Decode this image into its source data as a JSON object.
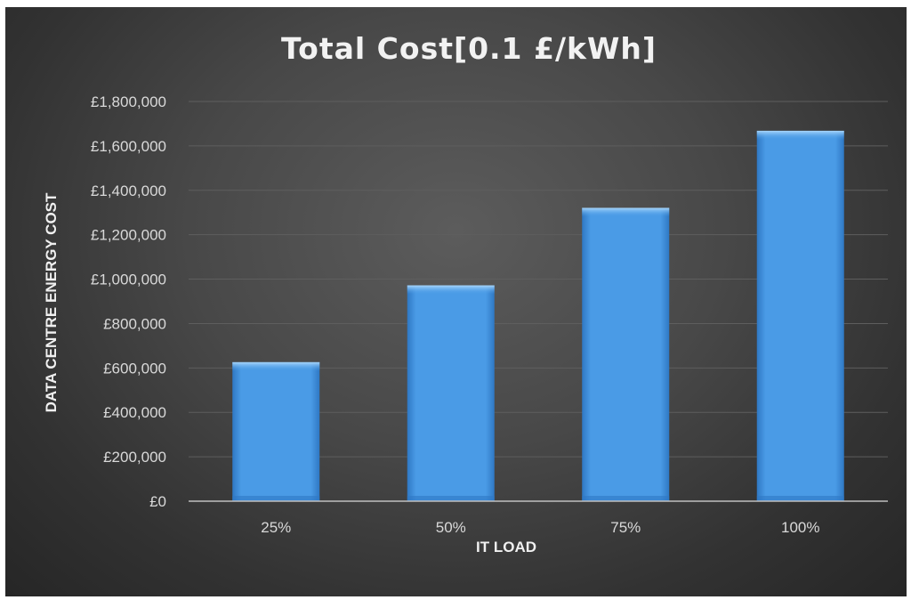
{
  "chart_data": {
    "type": "bar",
    "title": "Total Cost[0.1 £/kWh]",
    "xlabel": "IT LOAD",
    "ylabel": "DATA CENTRE ENERGY COST",
    "categories": [
      "25%",
      "50%",
      "75%",
      "100%"
    ],
    "values": [
      626000,
      972000,
      1321000,
      1668000
    ],
    "ylim": [
      0,
      1800000
    ],
    "yticks": [
      0,
      200000,
      400000,
      600000,
      800000,
      1000000,
      1200000,
      1400000,
      1600000,
      1800000
    ],
    "ytick_labels": [
      "£0",
      "£200,000",
      "£400,000",
      "£600,000",
      "£800,000",
      "£1,000,000",
      "£1,200,000",
      "£1,400,000",
      "£1,600,000",
      "£1,800,000"
    ],
    "grid": true,
    "legend": "none",
    "colors": {
      "bar": "#4a9be6",
      "bar_top": "#8cc6f7",
      "bar_dark": "#2f78c4",
      "background": "#3f3f3f",
      "text": "#d9d9d9"
    }
  }
}
